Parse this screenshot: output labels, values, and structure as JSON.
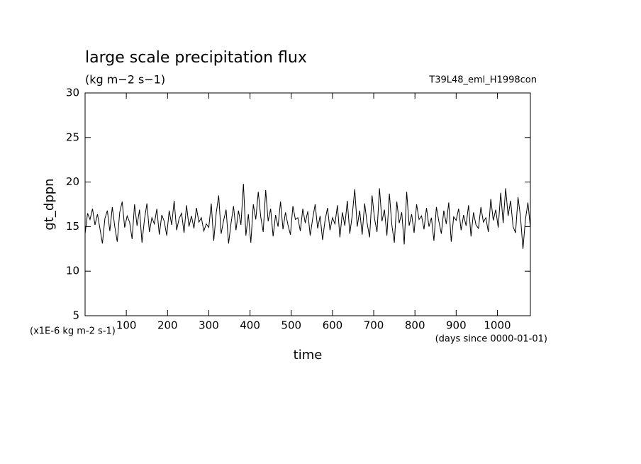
{
  "chart_data": {
    "type": "line",
    "title": "large scale precipitation flux",
    "subtitle": "(kg m−2 s−1)",
    "annotation": "T39L48_eml_H1998con",
    "y_label": "gt_dppn",
    "x_label": "time",
    "y_unit_note": "(x1E-6 kg m-2 s-1)",
    "x_unit_note": "(days since 0000-01-01)",
    "color": "#000000",
    "xlim": [
      0,
      1080
    ],
    "xticks": [
      100,
      200,
      300,
      400,
      500,
      600,
      700,
      800,
      900,
      1000
    ],
    "ylim": [
      5,
      30
    ],
    "yticks": [
      5,
      10,
      15,
      20,
      25,
      30
    ],
    "x": [
      0,
      6,
      12,
      18,
      24,
      30,
      36,
      42,
      48,
      54,
      60,
      66,
      72,
      78,
      84,
      90,
      96,
      102,
      108,
      114,
      120,
      126,
      132,
      138,
      144,
      150,
      156,
      162,
      168,
      174,
      180,
      186,
      192,
      198,
      204,
      210,
      216,
      222,
      228,
      234,
      240,
      246,
      252,
      258,
      264,
      270,
      276,
      282,
      288,
      294,
      300,
      306,
      312,
      318,
      324,
      330,
      336,
      342,
      348,
      354,
      360,
      366,
      372,
      378,
      384,
      390,
      396,
      402,
      408,
      414,
      420,
      426,
      432,
      438,
      444,
      450,
      456,
      462,
      468,
      474,
      480,
      486,
      492,
      498,
      504,
      510,
      516,
      522,
      528,
      534,
      540,
      546,
      552,
      558,
      564,
      570,
      576,
      582,
      588,
      594,
      600,
      606,
      612,
      618,
      624,
      630,
      636,
      642,
      648,
      654,
      660,
      666,
      672,
      678,
      684,
      690,
      696,
      702,
      708,
      714,
      720,
      726,
      732,
      738,
      744,
      750,
      756,
      762,
      768,
      774,
      780,
      786,
      792,
      798,
      804,
      810,
      816,
      822,
      828,
      834,
      840,
      846,
      852,
      858,
      864,
      870,
      876,
      882,
      888,
      894,
      900,
      906,
      912,
      918,
      924,
      930,
      936,
      942,
      948,
      954,
      960,
      966,
      972,
      978,
      984,
      990,
      996,
      1002,
      1008,
      1014,
      1020,
      1026,
      1032,
      1038,
      1044,
      1050,
      1056,
      1062,
      1068,
      1074,
      1080
    ],
    "values": [
      14.2,
      16.5,
      15.8,
      17.0,
      15.2,
      16.4,
      14.8,
      13.1,
      15.9,
      16.8,
      14.5,
      17.2,
      15.0,
      13.3,
      16.6,
      17.8,
      14.9,
      16.2,
      15.5,
      13.6,
      17.5,
      15.1,
      16.9,
      13.2,
      15.8,
      17.6,
      14.4,
      16.0,
      15.3,
      17.0,
      14.1,
      16.3,
      15.6,
      14.0,
      16.8,
      15.2,
      17.9,
      14.6,
      15.9,
      16.5,
      14.3,
      17.4,
      15.0,
      16.2,
      14.8,
      17.1,
      15.5,
      16.0,
      14.5,
      15.3,
      14.9,
      17.6,
      13.4,
      16.5,
      18.5,
      14.2,
      15.7,
      16.9,
      13.1,
      15.4,
      17.3,
      14.6,
      16.8,
      15.2,
      19.8,
      14.0,
      16.4,
      13.2,
      17.5,
      15.8,
      18.9,
      16.1,
      14.4,
      19.1,
      15.6,
      17.0,
      13.9,
      16.3,
      15.0,
      17.8,
      14.7,
      16.6,
      15.2,
      14.1,
      17.3,
      15.8,
      16.0,
      14.5,
      17.0,
      15.4,
      16.7,
      14.0,
      15.9,
      17.5,
      14.8,
      16.2,
      13.5,
      15.7,
      17.1,
      14.6,
      16.0,
      15.3,
      17.4,
      13.8,
      16.6,
      15.1,
      17.9,
      14.2,
      16.3,
      19.2,
      15.0,
      16.8,
      14.1,
      17.6,
      15.4,
      13.8,
      18.5,
      15.9,
      14.4,
      19.3,
      15.6,
      16.9,
      14.0,
      18.7,
      15.2,
      13.2,
      17.8,
      15.4,
      16.6,
      13.0,
      18.9,
      15.1,
      16.4,
      14.3,
      17.5,
      15.8,
      16.2,
      14.7,
      17.1,
      15.0,
      16.0,
      13.4,
      17.2,
      15.6,
      14.2,
      16.8,
      15.3,
      17.7,
      13.3,
      16.1,
      15.7,
      17.0,
      14.6,
      16.3,
      15.1,
      17.4,
      13.9,
      16.6,
      15.2,
      14.8,
      17.2,
      15.5,
      16.0,
      14.4,
      18.1,
      15.7,
      16.9,
      14.9,
      18.8,
      15.4,
      19.3,
      16.2,
      17.9,
      15.0,
      14.3,
      18.3,
      16.1,
      12.5,
      15.8,
      17.7,
      14.9
    ]
  }
}
